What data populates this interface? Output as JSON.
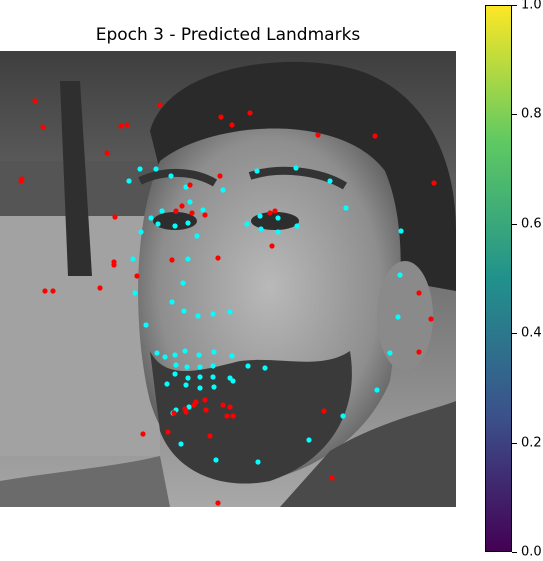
{
  "title": "Epoch 3 - Predicted Landmarks",
  "colorbar": {
    "colormap": "viridis",
    "ticks": [
      "0.0",
      "0.2",
      "0.4",
      "0.6",
      "0.8",
      "1.0"
    ],
    "colors": [
      "#440154",
      "#3b528b",
      "#21918c",
      "#5ec962",
      "#fde725"
    ]
  },
  "landmark_colors": {
    "predicted_cyan": "#00ffff",
    "predicted_red": "#ff0000"
  },
  "cyan_points": [
    [
      140,
      169
    ],
    [
      156,
      169
    ],
    [
      171,
      176
    ],
    [
      129,
      181
    ],
    [
      186,
      187
    ],
    [
      190,
      202
    ],
    [
      223,
      190
    ],
    [
      257,
      171
    ],
    [
      296,
      168
    ],
    [
      330,
      181
    ],
    [
      346,
      208
    ],
    [
      162,
      211
    ],
    [
      151,
      218
    ],
    [
      176,
      211
    ],
    [
      158,
      224
    ],
    [
      175,
      226
    ],
    [
      188,
      223
    ],
    [
      203,
      210
    ],
    [
      197,
      236
    ],
    [
      141,
      232
    ],
    [
      133,
      259
    ],
    [
      188,
      259
    ],
    [
      183,
      283
    ],
    [
      172,
      302
    ],
    [
      184,
      311
    ],
    [
      198,
      316
    ],
    [
      213,
      314
    ],
    [
      230,
      312
    ],
    [
      146,
      325
    ],
    [
      135,
      293
    ],
    [
      247,
      224
    ],
    [
      260,
      216
    ],
    [
      278,
      218
    ],
    [
      261,
      229
    ],
    [
      278,
      232
    ],
    [
      297,
      226
    ],
    [
      401,
      231
    ],
    [
      400,
      275
    ],
    [
      398,
      317
    ],
    [
      390,
      353
    ],
    [
      377,
      390
    ],
    [
      343,
      416
    ],
    [
      309,
      440
    ],
    [
      258,
      462
    ],
    [
      216,
      460
    ],
    [
      181,
      444
    ],
    [
      173,
      413
    ],
    [
      157,
      353
    ],
    [
      165,
      357
    ],
    [
      175,
      355
    ],
    [
      185,
      351
    ],
    [
      199,
      355
    ],
    [
      214,
      352
    ],
    [
      232,
      356
    ],
    [
      248,
      366
    ],
    [
      265,
      368
    ],
    [
      176,
      365
    ],
    [
      187,
      367
    ],
    [
      200,
      367
    ],
    [
      213,
      366
    ],
    [
      233,
      381
    ],
    [
      167,
      384
    ],
    [
      186,
      385
    ],
    [
      200,
      388
    ],
    [
      214,
      387
    ],
    [
      175,
      374
    ],
    [
      188,
      378
    ],
    [
      200,
      377
    ],
    [
      213,
      377
    ],
    [
      230,
      378
    ],
    [
      176,
      410
    ],
    [
      189,
      407
    ]
  ],
  "red_points": [
    [
      35,
      101
    ],
    [
      43,
      127
    ],
    [
      107,
      153
    ],
    [
      121,
      126
    ],
    [
      127,
      125
    ],
    [
      160,
      105
    ],
    [
      221,
      117
    ],
    [
      232,
      125
    ],
    [
      250,
      113
    ],
    [
      318,
      135
    ],
    [
      375,
      136
    ],
    [
      434,
      183
    ],
    [
      190,
      185
    ],
    [
      220,
      176
    ],
    [
      182,
      206
    ],
    [
      176,
      211
    ],
    [
      192,
      213
    ],
    [
      205,
      215
    ],
    [
      270,
      213
    ],
    [
      275,
      211
    ],
    [
      272,
      246
    ],
    [
      115,
      217
    ],
    [
      114,
      262
    ],
    [
      114,
      265
    ],
    [
      172,
      260
    ],
    [
      218,
      258
    ],
    [
      45,
      291
    ],
    [
      53,
      291
    ],
    [
      100,
      288
    ],
    [
      137,
      276
    ],
    [
      419,
      293
    ],
    [
      431,
      319
    ],
    [
      419,
      352
    ],
    [
      332,
      478
    ],
    [
      324,
      411
    ],
    [
      218,
      503
    ],
    [
      210,
      436
    ],
    [
      143,
      434
    ],
    [
      168,
      432
    ],
    [
      196,
      402
    ],
    [
      205,
      400
    ],
    [
      206,
      410
    ],
    [
      185,
      409
    ],
    [
      194,
      405
    ],
    [
      223,
      405
    ],
    [
      230,
      407
    ],
    [
      227,
      416
    ],
    [
      233,
      416
    ],
    [
      174,
      413
    ],
    [
      186,
      412
    ],
    [
      22,
      179
    ],
    [
      21,
      181
    ]
  ]
}
